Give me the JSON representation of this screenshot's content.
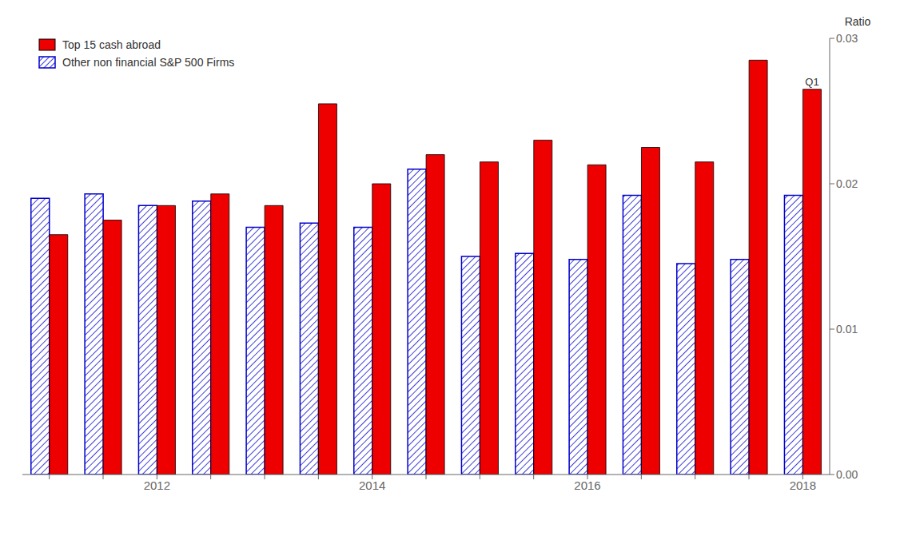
{
  "chart_data": {
    "type": "bar",
    "ylabel": "Ratio",
    "categories": [
      null,
      null,
      "2012",
      null,
      null,
      null,
      "2014",
      null,
      null,
      null,
      "2016",
      null,
      null,
      null,
      "2018"
    ],
    "series": [
      {
        "name": "Top 15 cash abroad",
        "color": "#EE0000",
        "values": [
          0.0165,
          0.0175,
          0.0185,
          0.0193,
          0.0185,
          0.0255,
          0.02,
          0.022,
          0.0215,
          0.023,
          0.0213,
          0.0225,
          0.0215,
          0.0285,
          0.0265
        ]
      },
      {
        "name": "Other non financial S&P 500 Firms",
        "color": "#0000CC",
        "values": [
          0.019,
          0.0193,
          0.0185,
          0.0188,
          0.017,
          0.0173,
          0.017,
          0.021,
          0.015,
          0.0152,
          0.0148,
          0.0192,
          0.0145,
          0.0148,
          0.0192
        ]
      }
    ],
    "ylim": [
      0.0,
      0.03
    ],
    "yticks": [
      {
        "value": 0,
        "label": "0.00"
      },
      0.01,
      0.02,
      0.03
    ],
    "annotations": [
      {
        "text": "Q1",
        "category": 14,
        "series": "Top 15 cash abroad"
      }
    ],
    "legend": "upper left",
    "grid": false
  }
}
